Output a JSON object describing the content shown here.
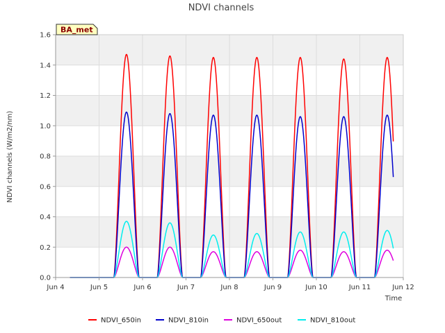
{
  "chart_data": {
    "type": "line",
    "title": "NDVI channels",
    "xlabel": "Time",
    "ylabel": "NDVI channels (W/m2/nm)",
    "xlim": [
      4.0,
      12.0
    ],
    "ylim": [
      0.0,
      1.6
    ],
    "x_ticks": [
      {
        "value": 4,
        "label": "Jun 4"
      },
      {
        "value": 5,
        "label": "Jun 5"
      },
      {
        "value": 6,
        "label": "Jun 6"
      },
      {
        "value": 7,
        "label": "Jun 7"
      },
      {
        "value": 8,
        "label": "Jun 8"
      },
      {
        "value": 9,
        "label": "Jun 9"
      },
      {
        "value": 10,
        "label": "Jun 10"
      },
      {
        "value": 11,
        "label": "Jun 11"
      },
      {
        "value": 12,
        "label": "Jun 12"
      }
    ],
    "y_ticks": [
      {
        "value": 0.0,
        "label": "0.0"
      },
      {
        "value": 0.2,
        "label": "0.2"
      },
      {
        "value": 0.4,
        "label": "0.4"
      },
      {
        "value": 0.6,
        "label": "0.6"
      },
      {
        "value": 0.8,
        "label": "0.8"
      },
      {
        "value": 1.0,
        "label": "1.0"
      },
      {
        "value": 1.2,
        "label": "1.2"
      },
      {
        "value": 1.4,
        "label": "1.4"
      },
      {
        "value": 1.6,
        "label": "1.6"
      }
    ],
    "badge": "BA_met",
    "daylight": {
      "start": 0.34,
      "end": 0.92
    },
    "data_end": 11.77,
    "days": [
      4,
      5,
      6,
      7,
      8,
      9,
      10,
      11
    ],
    "series": [
      {
        "name": "NDVI_650in",
        "color": "#ff0000",
        "peaks": [
          0.0,
          1.47,
          1.46,
          1.45,
          1.45,
          1.45,
          1.44,
          1.45
        ]
      },
      {
        "name": "NDVI_810in",
        "color": "#0000cc",
        "peaks": [
          0.0,
          1.09,
          1.08,
          1.07,
          1.07,
          1.06,
          1.06,
          1.07
        ]
      },
      {
        "name": "NDVI_650out",
        "color": "#dd00dd",
        "peaks": [
          0.0,
          0.2,
          0.2,
          0.17,
          0.17,
          0.18,
          0.17,
          0.18
        ]
      },
      {
        "name": "NDVI_810out",
        "color": "#00eeee",
        "peaks": [
          0.0,
          0.37,
          0.36,
          0.28,
          0.29,
          0.3,
          0.3,
          0.31
        ]
      }
    ]
  }
}
